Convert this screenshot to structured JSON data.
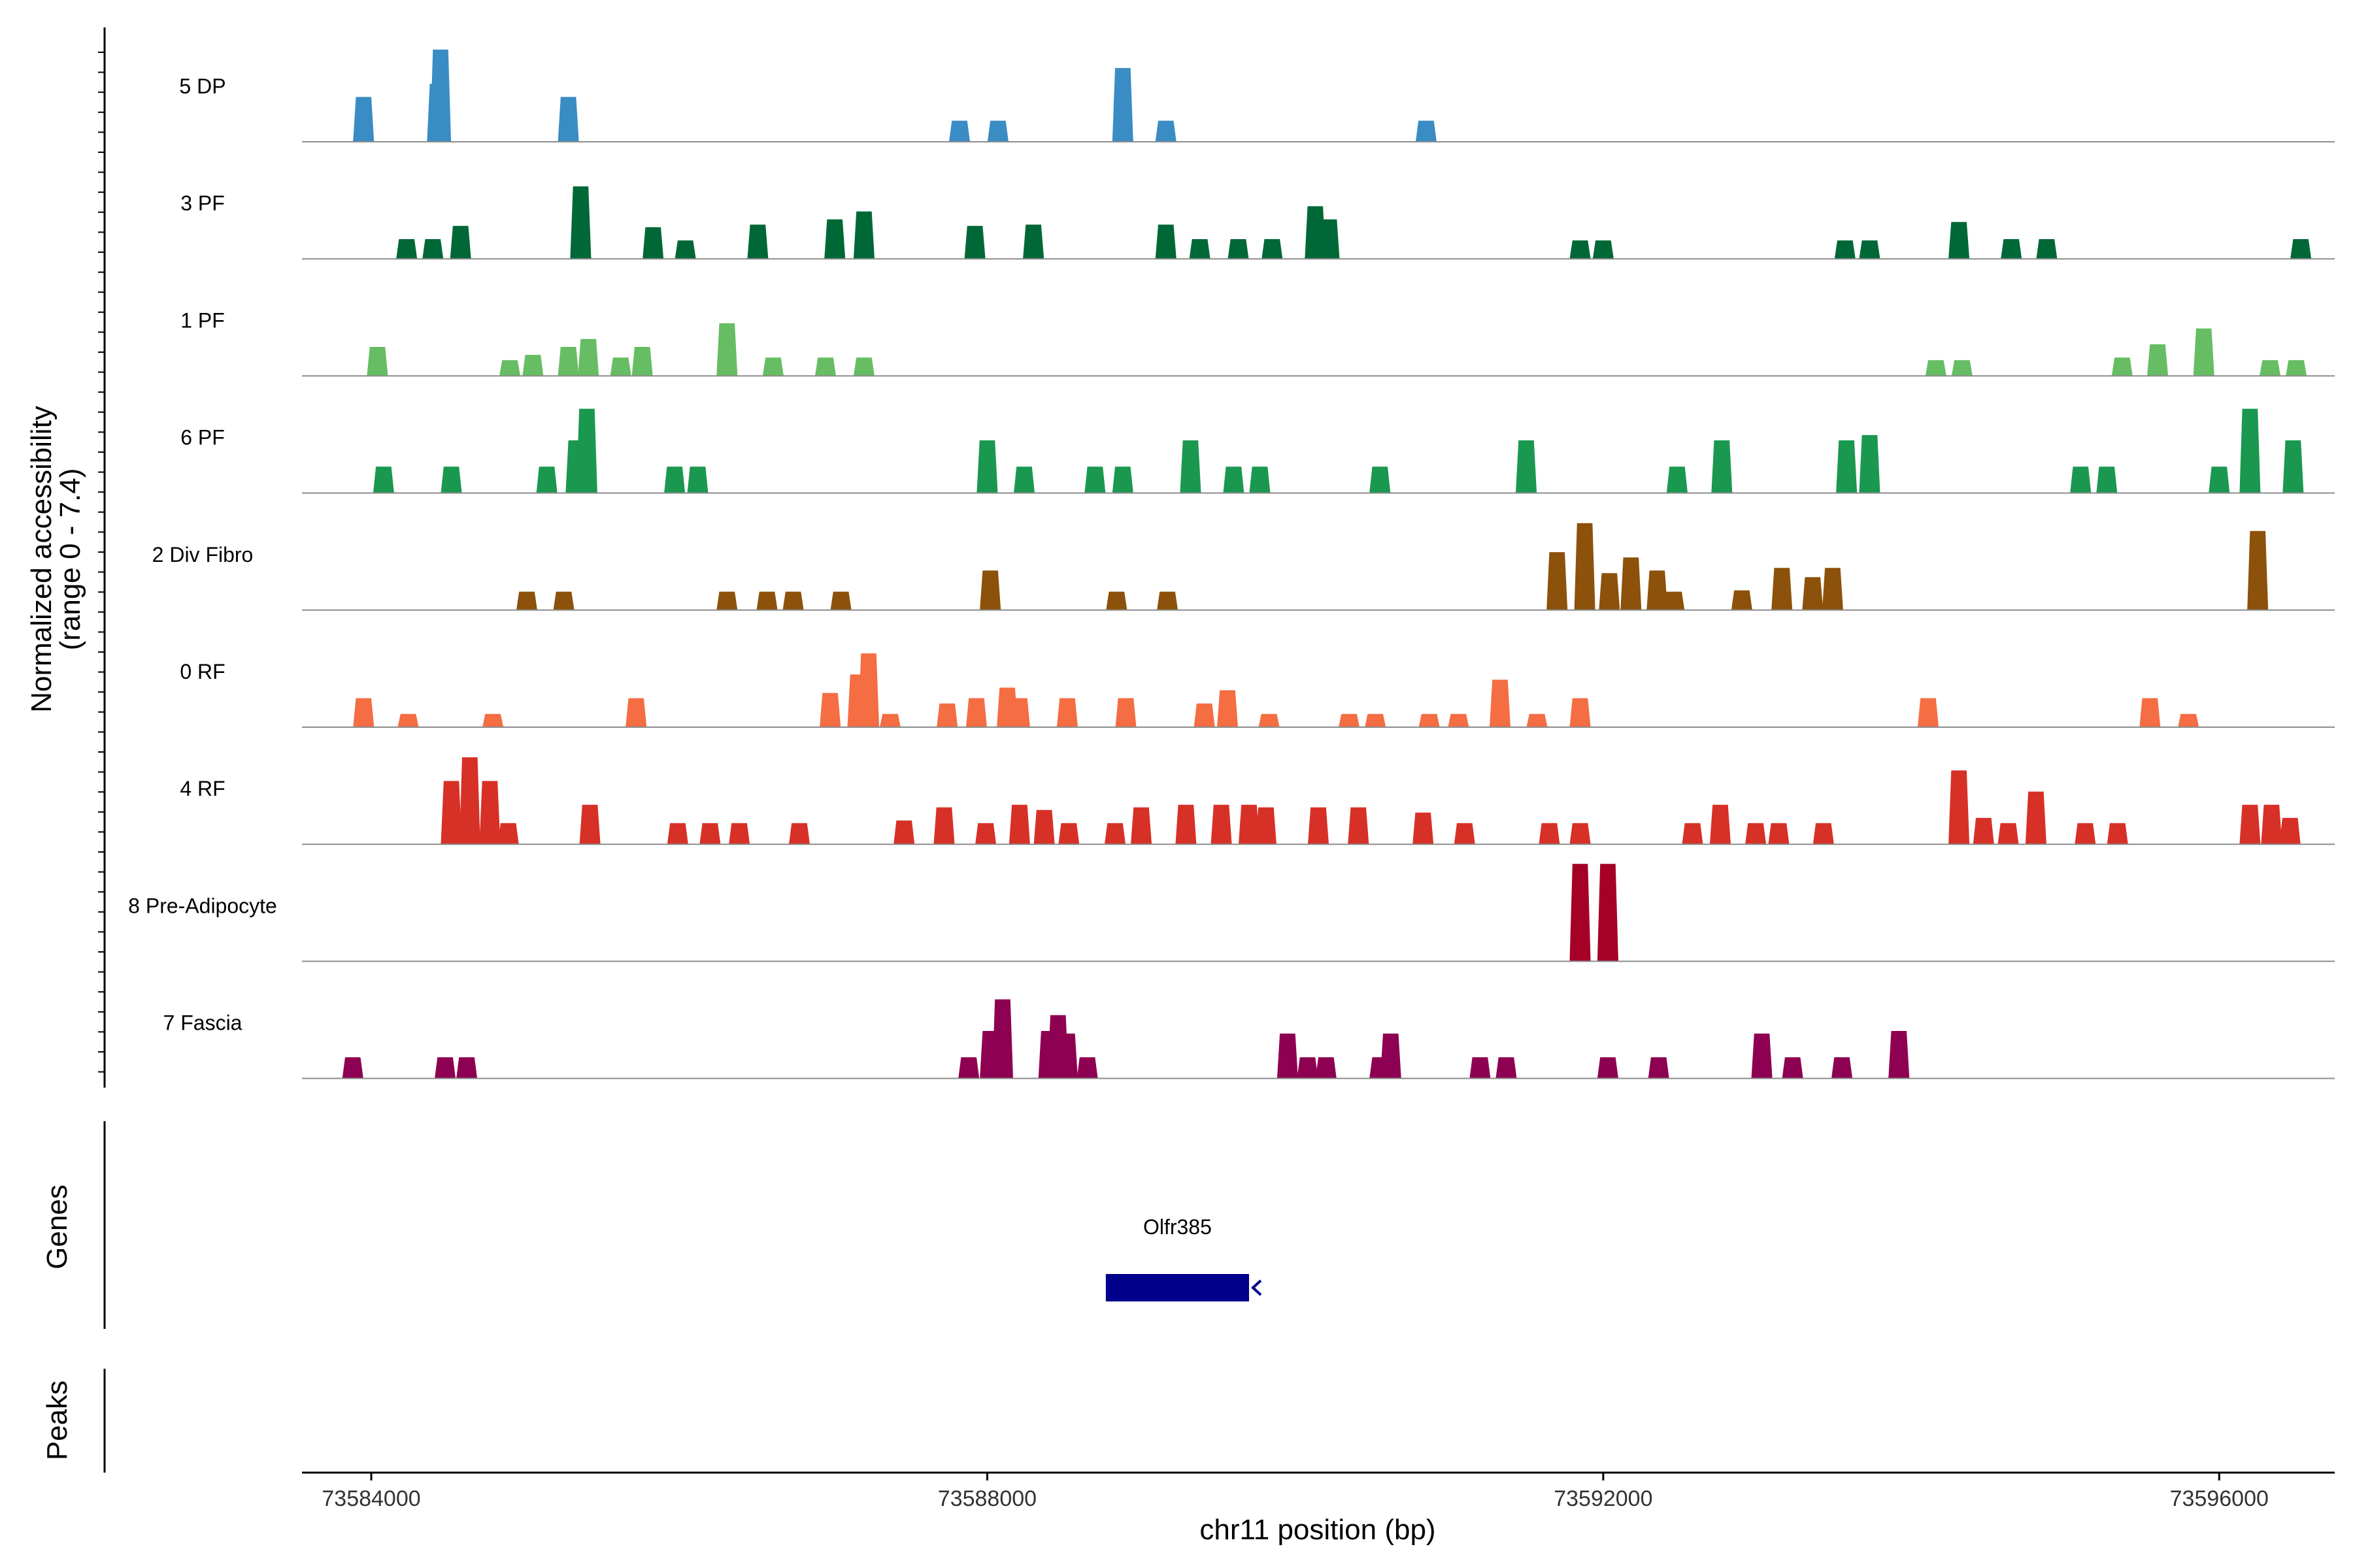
{
  "chart_data": {
    "type": "area",
    "title": "",
    "ylabel": "Normalized accessibility",
    "ylabel_range": "(range 0 - 7.4)",
    "xlabel": "chr11 position (bp)",
    "xlim": [
      73583550,
      73596750
    ],
    "ylim": [
      0,
      7.4
    ],
    "x_ticks": [
      73584000,
      73588000,
      73592000,
      73596000
    ],
    "x_tick_labels": [
      "73584000",
      "73588000",
      "73592000",
      "73596000"
    ],
    "bin_width": 100,
    "tracks": [
      {
        "name": "5 DP",
        "color": "#3A8CC4",
        "peaks": [
          [
            73583950,
            3.4
          ],
          [
            73584430,
            4.4
          ],
          [
            73584450,
            7.0
          ],
          [
            73585280,
            3.4
          ],
          [
            73587820,
            1.6
          ],
          [
            73588070,
            1.6
          ],
          [
            73588880,
            5.6
          ],
          [
            73589160,
            1.6
          ],
          [
            73590850,
            1.6
          ]
        ]
      },
      {
        "name": "3 PF",
        "color": "#006837",
        "peaks": [
          [
            73584230,
            1.5
          ],
          [
            73584400,
            1.5
          ],
          [
            73584580,
            2.5
          ],
          [
            73585360,
            5.5
          ],
          [
            73585830,
            2.4
          ],
          [
            73586040,
            1.4
          ],
          [
            73586510,
            2.6
          ],
          [
            73587010,
            3.0
          ],
          [
            73587200,
            3.6
          ],
          [
            73587920,
            2.5
          ],
          [
            73588300,
            2.6
          ],
          [
            73589160,
            2.6
          ],
          [
            73589380,
            1.5
          ],
          [
            73589630,
            1.5
          ],
          [
            73589850,
            1.5
          ],
          [
            73590130,
            4.0
          ],
          [
            73590220,
            3.0
          ],
          [
            73591850,
            1.4
          ],
          [
            73592000,
            1.4
          ],
          [
            73593570,
            1.4
          ],
          [
            73593730,
            1.4
          ],
          [
            73594310,
            2.8
          ],
          [
            73594650,
            1.5
          ],
          [
            73594880,
            1.5
          ],
          [
            73596530,
            1.5
          ]
        ]
      },
      {
        "name": "1 PF",
        "color": "#66BD63",
        "peaks": [
          [
            73584040,
            2.2
          ],
          [
            73584900,
            1.2
          ],
          [
            73585050,
            1.6
          ],
          [
            73585280,
            2.2
          ],
          [
            73585410,
            2.8
          ],
          [
            73585620,
            1.4
          ],
          [
            73585760,
            2.2
          ],
          [
            73586310,
            4.0
          ],
          [
            73586610,
            1.4
          ],
          [
            73586950,
            1.4
          ],
          [
            73587200,
            1.4
          ],
          [
            73594160,
            1.2
          ],
          [
            73594330,
            1.2
          ],
          [
            73595370,
            1.4
          ],
          [
            73595600,
            2.4
          ],
          [
            73595900,
            3.6
          ],
          [
            73596330,
            1.2
          ],
          [
            73596500,
            1.2
          ]
        ]
      },
      {
        "name": "6 PF",
        "color": "#1A9850",
        "peaks": [
          [
            73584080,
            2.0
          ],
          [
            73584520,
            2.0
          ],
          [
            73585140,
            2.0
          ],
          [
            73585330,
            4.0
          ],
          [
            73585400,
            6.4
          ],
          [
            73585970,
            2.0
          ],
          [
            73586120,
            2.0
          ],
          [
            73588000,
            4.0
          ],
          [
            73588240,
            2.0
          ],
          [
            73588700,
            2.0
          ],
          [
            73588880,
            2.0
          ],
          [
            73589320,
            4.0
          ],
          [
            73589600,
            2.0
          ],
          [
            73589770,
            2.0
          ],
          [
            73590550,
            2.0
          ],
          [
            73591500,
            4.0
          ],
          [
            73592480,
            2.0
          ],
          [
            73592770,
            4.0
          ],
          [
            73593580,
            4.0
          ],
          [
            73593730,
            4.4
          ],
          [
            73595100,
            2.0
          ],
          [
            73595270,
            2.0
          ],
          [
            73596000,
            2.0
          ],
          [
            73596200,
            6.4
          ],
          [
            73596480,
            4.0
          ]
        ]
      },
      {
        "name": "2 Div Fibro",
        "color": "#8C510A",
        "peaks": [
          [
            73585010,
            1.4
          ],
          [
            73585250,
            1.4
          ],
          [
            73586310,
            1.4
          ],
          [
            73586570,
            1.4
          ],
          [
            73586740,
            1.4
          ],
          [
            73587050,
            1.4
          ],
          [
            73588020,
            3.0
          ],
          [
            73588840,
            1.4
          ],
          [
            73589170,
            1.4
          ],
          [
            73591700,
            4.4
          ],
          [
            73591880,
            6.6
          ],
          [
            73592040,
            2.8
          ],
          [
            73592180,
            4.0
          ],
          [
            73592350,
            3.0
          ],
          [
            73592460,
            1.4
          ],
          [
            73592900,
            1.5
          ],
          [
            73593160,
            3.2
          ],
          [
            73593360,
            2.5
          ],
          [
            73593490,
            3.2
          ],
          [
            73596250,
            6.0
          ]
        ]
      },
      {
        "name": "0 RF",
        "color": "#F46D43",
        "peaks": [
          [
            73583950,
            2.2
          ],
          [
            73584240,
            1.0
          ],
          [
            73584790,
            1.0
          ],
          [
            73585720,
            2.2
          ],
          [
            73586980,
            2.6
          ],
          [
            73587160,
            4.0
          ],
          [
            73587230,
            5.6
          ],
          [
            73587370,
            1.0
          ],
          [
            73587740,
            1.8
          ],
          [
            73587930,
            2.2
          ],
          [
            73588130,
            3.0
          ],
          [
            73588210,
            2.2
          ],
          [
            73588520,
            2.2
          ],
          [
            73588900,
            2.2
          ],
          [
            73589410,
            1.8
          ],
          [
            73589560,
            2.8
          ],
          [
            73589830,
            1.0
          ],
          [
            73590350,
            1.0
          ],
          [
            73590520,
            1.0
          ],
          [
            73590870,
            1.0
          ],
          [
            73591060,
            1.0
          ],
          [
            73591330,
            3.6
          ],
          [
            73591570,
            1.0
          ],
          [
            73591850,
            2.2
          ],
          [
            73594110,
            2.2
          ],
          [
            73595550,
            2.2
          ],
          [
            73595800,
            1.0
          ]
        ]
      },
      {
        "name": "4 RF",
        "color": "#D73027",
        "peaks": [
          [
            73584520,
            4.8
          ],
          [
            73584640,
            6.6
          ],
          [
            73584770,
            4.8
          ],
          [
            73584890,
            1.6
          ],
          [
            73585420,
            3.0
          ],
          [
            73585990,
            1.6
          ],
          [
            73586200,
            1.6
          ],
          [
            73586390,
            1.6
          ],
          [
            73586780,
            1.6
          ],
          [
            73587460,
            1.8
          ],
          [
            73587720,
            2.8
          ],
          [
            73587990,
            1.6
          ],
          [
            73588210,
            3.0
          ],
          [
            73588370,
            2.6
          ],
          [
            73588530,
            1.6
          ],
          [
            73588830,
            1.6
          ],
          [
            73589000,
            2.8
          ],
          [
            73589290,
            3.0
          ],
          [
            73589520,
            3.0
          ],
          [
            73589700,
            3.0
          ],
          [
            73589810,
            2.8
          ],
          [
            73590150,
            2.8
          ],
          [
            73590410,
            2.8
          ],
          [
            73590830,
            2.4
          ],
          [
            73591100,
            1.6
          ],
          [
            73591650,
            1.6
          ],
          [
            73591850,
            1.6
          ],
          [
            73592580,
            1.6
          ],
          [
            73592760,
            3.0
          ],
          [
            73592990,
            1.6
          ],
          [
            73593140,
            1.6
          ],
          [
            73593430,
            1.6
          ],
          [
            73594310,
            5.6
          ],
          [
            73594470,
            2.0
          ],
          [
            73594630,
            1.6
          ],
          [
            73594810,
            4.0
          ],
          [
            73595130,
            1.6
          ],
          [
            73595340,
            1.6
          ],
          [
            73596200,
            3.0
          ],
          [
            73596340,
            3.0
          ],
          [
            73596460,
            2.0
          ]
        ]
      },
      {
        "name": "8 Pre-Adipocyte",
        "color": "#A50026",
        "peaks": [
          [
            73591850,
            7.4
          ],
          [
            73592030,
            7.4
          ]
        ]
      },
      {
        "name": "7 Fascia",
        "color": "#8E0152",
        "peaks": [
          [
            73583880,
            1.6
          ],
          [
            73584480,
            1.6
          ],
          [
            73584620,
            1.6
          ],
          [
            73587880,
            1.6
          ],
          [
            73588020,
            3.6
          ],
          [
            73588100,
            6.0
          ],
          [
            73588400,
            3.6
          ],
          [
            73588460,
            4.8
          ],
          [
            73588520,
            3.4
          ],
          [
            73588650,
            1.6
          ],
          [
            73589950,
            3.4
          ],
          [
            73590080,
            1.6
          ],
          [
            73590200,
            1.6
          ],
          [
            73590550,
            1.6
          ],
          [
            73590620,
            3.4
          ],
          [
            73591200,
            1.6
          ],
          [
            73591370,
            1.6
          ],
          [
            73592030,
            1.6
          ],
          [
            73592360,
            1.6
          ],
          [
            73593030,
            3.4
          ],
          [
            73593230,
            1.6
          ],
          [
            73593550,
            1.6
          ],
          [
            73593920,
            3.6
          ]
        ]
      }
    ],
    "genes": [
      {
        "name": "Olfr385",
        "start": 73588770,
        "end": 73589700,
        "strand": "-",
        "color": "#00008B"
      }
    ],
    "genes_label": "Genes",
    "peaks_label": "Peaks"
  }
}
